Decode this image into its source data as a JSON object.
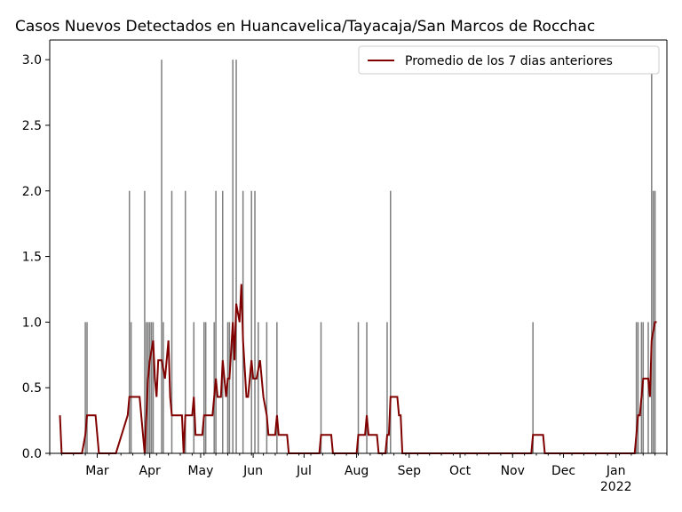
{
  "chart_data": {
    "type": "bar",
    "title": "Casos Nuevos Detectados en Huancavelica/Tayacaja/San Marcos de Rocchac",
    "xlabel": "",
    "ylabel": "",
    "ylim": [
      0,
      3.15
    ],
    "y_ticks": [
      "0.0",
      "0.5",
      "1.0",
      "1.5",
      "2.0",
      "2.5",
      "3.0"
    ],
    "x_ticks": [
      "Mar",
      "Apr",
      "May",
      "Jun",
      "Jul",
      "Aug",
      "Sep",
      "Oct",
      "Nov",
      "Dec",
      "Jan\n2022"
    ],
    "x_start": "2021-02-01",
    "x_end": "2022-01-31",
    "grid": false,
    "legend_position": "top-right",
    "series": [
      {
        "type": "bar",
        "color": "#808080",
        "points": [
          [
            "2021-02-22",
            1
          ],
          [
            "2021-02-23",
            1
          ],
          [
            "2021-03-20",
            2
          ],
          [
            "2021-03-21",
            1
          ],
          [
            "2021-03-29",
            2
          ],
          [
            "2021-03-30",
            1
          ],
          [
            "2021-03-31",
            1
          ],
          [
            "2021-04-01",
            1
          ],
          [
            "2021-04-02",
            1
          ],
          [
            "2021-04-03",
            1
          ],
          [
            "2021-04-08",
            3
          ],
          [
            "2021-04-09",
            1
          ],
          [
            "2021-04-14",
            2
          ],
          [
            "2021-04-22",
            2
          ],
          [
            "2021-04-27",
            1
          ],
          [
            "2021-05-03",
            1
          ],
          [
            "2021-05-04",
            1
          ],
          [
            "2021-05-09",
            1
          ],
          [
            "2021-05-10",
            2
          ],
          [
            "2021-05-14",
            2
          ],
          [
            "2021-05-17",
            1
          ],
          [
            "2021-05-18",
            1
          ],
          [
            "2021-05-20",
            3
          ],
          [
            "2021-05-22",
            3
          ],
          [
            "2021-05-26",
            2
          ],
          [
            "2021-05-31",
            2
          ],
          [
            "2021-06-02",
            2
          ],
          [
            "2021-06-04",
            1
          ],
          [
            "2021-06-09",
            1
          ],
          [
            "2021-06-15",
            1
          ],
          [
            "2021-07-11",
            1
          ],
          [
            "2021-08-02",
            1
          ],
          [
            "2021-08-07",
            1
          ],
          [
            "2021-08-19",
            1
          ],
          [
            "2021-08-21",
            2
          ],
          [
            "2021-11-13",
            1
          ],
          [
            "2022-01-13",
            1
          ],
          [
            "2022-01-14",
            1
          ],
          [
            "2022-01-16",
            1
          ],
          [
            "2022-01-17",
            1
          ],
          [
            "2022-01-20",
            1
          ],
          [
            "2022-01-22",
            3
          ],
          [
            "2022-01-23",
            2
          ],
          [
            "2022-01-24",
            2
          ]
        ]
      },
      {
        "type": "line",
        "name": "Promedio de los 7 dias anteriores",
        "color": "#800000",
        "points": [
          [
            "2021-02-07",
            0.29
          ],
          [
            "2021-02-08",
            0
          ],
          [
            "2021-02-20",
            0
          ],
          [
            "2021-02-22",
            0.14
          ],
          [
            "2021-02-23",
            0.29
          ],
          [
            "2021-02-28",
            0.29
          ],
          [
            "2021-03-02",
            0
          ],
          [
            "2021-03-12",
            0
          ],
          [
            "2021-03-19",
            0.29
          ],
          [
            "2021-03-20",
            0.43
          ],
          [
            "2021-03-26",
            0.43
          ],
          [
            "2021-03-29",
            0
          ],
          [
            "2021-03-31",
            0.57
          ],
          [
            "2021-04-01",
            0.71
          ],
          [
            "2021-04-03",
            0.86
          ],
          [
            "2021-04-04",
            0.57
          ],
          [
            "2021-04-05",
            0.43
          ],
          [
            "2021-04-06",
            0.71
          ],
          [
            "2021-04-08",
            0.71
          ],
          [
            "2021-04-10",
            0.57
          ],
          [
            "2021-04-12",
            0.86
          ],
          [
            "2021-04-13",
            0.43
          ],
          [
            "2021-04-14",
            0.29
          ],
          [
            "2021-04-20",
            0.29
          ],
          [
            "2021-04-21",
            0
          ],
          [
            "2021-04-22",
            0.29
          ],
          [
            "2021-04-26",
            0.29
          ],
          [
            "2021-04-27",
            0.43
          ],
          [
            "2021-04-28",
            0.14
          ],
          [
            "2021-05-02",
            0.14
          ],
          [
            "2021-05-03",
            0.29
          ],
          [
            "2021-05-08",
            0.29
          ],
          [
            "2021-05-10",
            0.57
          ],
          [
            "2021-05-11",
            0.43
          ],
          [
            "2021-05-13",
            0.43
          ],
          [
            "2021-05-14",
            0.71
          ],
          [
            "2021-05-16",
            0.43
          ],
          [
            "2021-05-17",
            0.57
          ],
          [
            "2021-05-18",
            0.57
          ],
          [
            "2021-05-20",
            1.0
          ],
          [
            "2021-05-21",
            0.71
          ],
          [
            "2021-05-22",
            1.14
          ],
          [
            "2021-05-24",
            1.0
          ],
          [
            "2021-05-25",
            1.29
          ],
          [
            "2021-05-26",
            0.86
          ],
          [
            "2021-05-28",
            0.43
          ],
          [
            "2021-05-29",
            0.43
          ],
          [
            "2021-05-31",
            0.71
          ],
          [
            "2021-06-01",
            0.57
          ],
          [
            "2021-06-03",
            0.57
          ],
          [
            "2021-06-05",
            0.71
          ],
          [
            "2021-06-07",
            0.43
          ],
          [
            "2021-06-09",
            0.29
          ],
          [
            "2021-06-10",
            0.14
          ],
          [
            "2021-06-14",
            0.14
          ],
          [
            "2021-06-15",
            0.29
          ],
          [
            "2021-06-16",
            0.14
          ],
          [
            "2021-06-21",
            0.14
          ],
          [
            "2021-06-22",
            0
          ],
          [
            "2021-07-10",
            0
          ],
          [
            "2021-07-11",
            0.14
          ],
          [
            "2021-07-17",
            0.14
          ],
          [
            "2021-07-18",
            0
          ],
          [
            "2021-08-01",
            0
          ],
          [
            "2021-08-02",
            0.14
          ],
          [
            "2021-08-06",
            0.14
          ],
          [
            "2021-08-07",
            0.29
          ],
          [
            "2021-08-08",
            0.14
          ],
          [
            "2021-08-13",
            0.14
          ],
          [
            "2021-08-14",
            0
          ],
          [
            "2021-08-18",
            0
          ],
          [
            "2021-08-19",
            0.14
          ],
          [
            "2021-08-20",
            0.14
          ],
          [
            "2021-08-21",
            0.43
          ],
          [
            "2021-08-25",
            0.43
          ],
          [
            "2021-08-26",
            0.29
          ],
          [
            "2021-08-27",
            0.29
          ],
          [
            "2021-08-28",
            0
          ],
          [
            "2021-11-12",
            0
          ],
          [
            "2021-11-13",
            0.14
          ],
          [
            "2021-11-19",
            0.14
          ],
          [
            "2021-11-20",
            0
          ],
          [
            "2022-01-12",
            0
          ],
          [
            "2022-01-13",
            0.14
          ],
          [
            "2022-01-14",
            0.29
          ],
          [
            "2022-01-15",
            0.29
          ],
          [
            "2022-01-17",
            0.57
          ],
          [
            "2022-01-20",
            0.57
          ],
          [
            "2022-01-21",
            0.43
          ],
          [
            "2022-01-22",
            0.86
          ],
          [
            "2022-01-24",
            1.0
          ],
          [
            "2022-01-25",
            1.0
          ]
        ]
      }
    ]
  },
  "colors": {
    "line": "#800000",
    "bars": "#808080",
    "axis": "#000000"
  }
}
